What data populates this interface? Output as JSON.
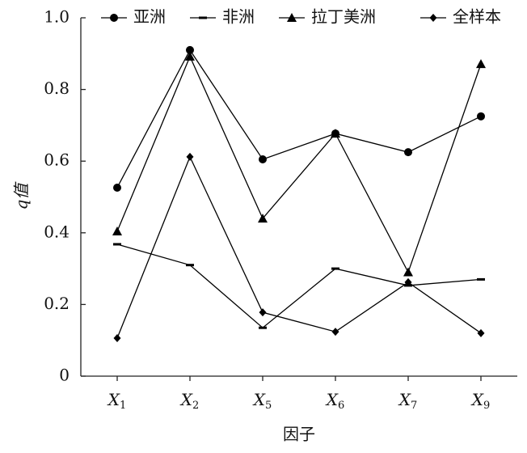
{
  "chart_data": {
    "type": "line",
    "ylabel": "q值",
    "xlabel": "因子",
    "categories": [
      "X1",
      "X2",
      "X5",
      "X6",
      "X7",
      "X9"
    ],
    "ylim": [
      0,
      1
    ],
    "yticks": [
      0,
      0.2,
      0.4,
      0.6,
      0.8,
      {
        "value": 1,
        "label": "1.0"
      }
    ],
    "legend": "top",
    "series": [
      {
        "name": "亚洲",
        "color": "#000000",
        "marker": "circle",
        "values": [
          0.526,
          0.91,
          0.605,
          0.677,
          0.625,
          0.725
        ]
      },
      {
        "name": "非洲",
        "color": "#000000",
        "marker": "dash",
        "values": [
          0.368,
          0.31,
          0.135,
          0.3,
          0.253,
          0.27
        ]
      },
      {
        "name": "拉丁美洲",
        "color": "#000000",
        "marker": "triangle",
        "values": [
          0.404,
          0.892,
          0.44,
          0.677,
          0.29,
          0.871
        ]
      },
      {
        "name": "全样本",
        "color": "#000000",
        "marker": "diamond",
        "values": [
          0.106,
          0.612,
          0.178,
          0.124,
          0.262,
          0.12
        ]
      }
    ]
  }
}
